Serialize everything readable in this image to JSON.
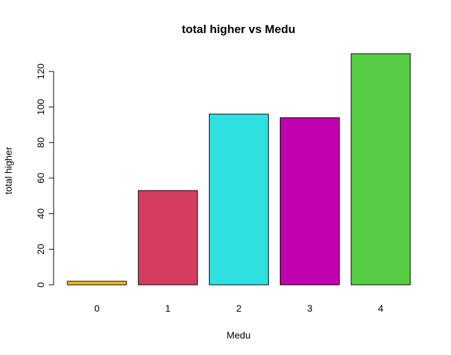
{
  "chart_data": {
    "type": "bar",
    "title": "total higher vs Medu",
    "xlabel": "Medu",
    "ylabel": "total higher",
    "categories": [
      "0",
      "1",
      "2",
      "3",
      "4"
    ],
    "values": [
      2,
      53,
      96,
      94,
      130
    ],
    "colors": [
      "#f5bb1c",
      "#d63c5e",
      "#2ee0e0",
      "#c000b0",
      "#55cc44"
    ],
    "yticks": [
      0,
      20,
      40,
      60,
      80,
      100,
      120
    ],
    "ylim": [
      0,
      130
    ],
    "grid": false,
    "legend": "none"
  }
}
